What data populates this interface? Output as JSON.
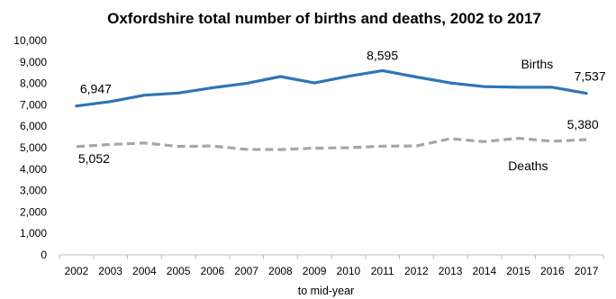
{
  "chart_data": {
    "type": "line",
    "title": "Oxfordshire total number of births and deaths, 2002 to 2017",
    "xlabel": "to mid-year",
    "ylabel": "",
    "ylim": [
      0,
      10000
    ],
    "yticks": [
      0,
      1000,
      2000,
      3000,
      4000,
      5000,
      6000,
      7000,
      8000,
      9000,
      10000
    ],
    "ytick_labels": [
      "0",
      "1,000",
      "2,000",
      "3,000",
      "4,000",
      "5,000",
      "6,000",
      "7,000",
      "8,000",
      "9,000",
      "10,000"
    ],
    "categories": [
      "2002",
      "2003",
      "2004",
      "2005",
      "2006",
      "2007",
      "2008",
      "2009",
      "2010",
      "2011",
      "2012",
      "2013",
      "2014",
      "2015",
      "2016",
      "2017"
    ],
    "grid": false,
    "legend": "none",
    "series": [
      {
        "name": "Births",
        "color": "#2E75B6",
        "style": "solid",
        "values": [
          6947,
          7150,
          7450,
          7550,
          7800,
          8000,
          8320,
          8020,
          8330,
          8595,
          8300,
          8020,
          7850,
          7820,
          7820,
          7537
        ]
      },
      {
        "name": "Deaths",
        "color": "#A6A6A6",
        "style": "dashed",
        "values": [
          5052,
          5150,
          5220,
          5060,
          5080,
          4920,
          4910,
          4980,
          5000,
          5070,
          5080,
          5420,
          5280,
          5440,
          5300,
          5380
        ]
      }
    ],
    "annotations": [
      {
        "series": 0,
        "index": 0,
        "text": "6,947"
      },
      {
        "series": 0,
        "index": 9,
        "text": "8,595"
      },
      {
        "series": 0,
        "index": 15,
        "text": "7,537"
      },
      {
        "series": 1,
        "index": 0,
        "text": "5,052"
      },
      {
        "series": 1,
        "index": 15,
        "text": "5,380"
      }
    ]
  }
}
